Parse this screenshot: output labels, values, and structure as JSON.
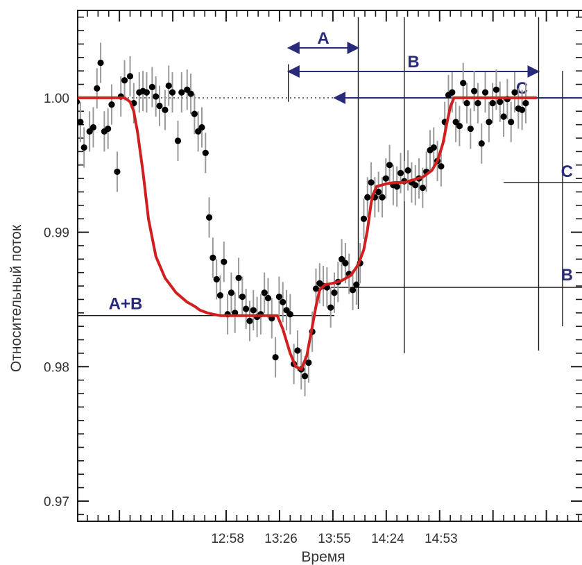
{
  "chart_data": {
    "type": "scatter",
    "xlabel": "Время",
    "ylabel": "Относительный поток",
    "x_ticks": [
      "12:58",
      "13:26",
      "13:55",
      "14:24",
      "14:53"
    ],
    "y_ticks": [
      "0.97",
      "0.98",
      "0.99",
      "1.00"
    ],
    "ylim": [
      0.9685,
      1.0065
    ],
    "grid": false,
    "colors": {
      "data": "#000000",
      "errorbar": "#9a9a9a",
      "model": "#d11f1f",
      "annotation": "#2a2a7a"
    },
    "contact_times_min": [
      -25,
      13,
      38,
      111,
      124,
      143,
      162,
      204
    ],
    "annotations": {
      "arrows": [
        {
          "label": "A",
          "from": -25,
          "to": 13
        },
        {
          "label": "B",
          "from": -25,
          "to": 111
        },
        {
          "label": "C",
          "from": 0,
          "to": 204
        }
      ],
      "levels": [
        {
          "label": "A+B",
          "value": 0.9838
        },
        {
          "label": "B",
          "value": 0.9859
        },
        {
          "label": "C",
          "value": 0.9937
        }
      ]
    },
    "series": [
      {
        "kind": "points",
        "x": [
          2,
          4,
          6,
          9,
          11,
          13,
          15,
          17,
          19,
          21,
          24,
          26,
          28,
          31,
          33,
          36,
          38,
          40,
          43,
          45,
          47,
          50,
          52,
          54,
          57,
          59,
          62,
          64,
          66,
          68,
          70,
          72,
          74,
          76,
          78,
          80,
          82,
          84,
          86,
          88,
          90,
          92,
          94,
          96,
          98,
          100,
          102,
          104,
          106,
          108,
          110,
          112,
          114,
          116,
          118,
          120,
          122,
          124,
          126,
          128,
          130,
          132,
          134,
          136,
          138,
          140,
          142,
          144,
          146,
          148,
          150,
          152,
          154,
          156,
          158,
          160,
          162,
          164,
          166,
          168,
          170,
          172,
          174,
          176,
          178,
          180,
          182,
          184,
          186,
          188,
          190,
          192,
          194,
          196,
          198,
          200,
          202,
          204,
          206,
          208,
          210,
          212,
          214,
          216,
          218,
          220,
          222,
          224,
          226,
          228,
          230,
          232,
          234,
          236,
          238,
          240,
          242,
          244,
          246
        ],
        "y": [
          0.9997,
          0.9982,
          0.9963,
          0.9975,
          0.9978,
          1.0007,
          1.0026,
          0.9975,
          0.9977,
          0.9995,
          0.9945,
          1.0001,
          1.0013,
          1.0016,
          0.9996,
          1.0004,
          1.0005,
          1.0004,
          1.0008,
          1.0001,
          0.9994,
          0.9991,
          1.0009,
          1.0004,
          0.9968,
          1.0004,
          1.0006,
          1.0003,
          0.9988,
          0.9975,
          0.9978,
          0.9959,
          0.9911,
          0.9881,
          0.9865,
          0.9853,
          0.9878,
          0.9839,
          0.9855,
          0.984,
          0.9866,
          0.9852,
          0.9843,
          0.9834,
          0.9842,
          0.9837,
          0.9839,
          0.9855,
          0.9851,
          0.9836,
          0.9807,
          0.9852,
          0.9848,
          0.9842,
          0.9839,
          0.9802,
          0.9812,
          0.9798,
          0.9793,
          0.9803,
          0.9826,
          0.9858,
          0.9862,
          0.986,
          0.9859,
          0.9844,
          0.9855,
          0.9863,
          0.988,
          0.9877,
          0.9869,
          0.9857,
          0.9861,
          0.9877,
          0.991,
          0.9926,
          0.9937,
          0.9926,
          0.993,
          0.9926,
          0.994,
          0.995,
          0.9935,
          0.9934,
          0.9944,
          0.9938,
          0.9946,
          0.9937,
          0.9935,
          0.994,
          0.9933,
          0.9945,
          0.9961,
          0.9963,
          0.9953,
          0.9949,
          0.9982,
          1.0002,
          1.0004,
          0.9982,
          0.9979,
          1.0011,
          0.9996,
          0.9977,
          1.0005,
          0.9996,
          0.9966,
          1.0004,
          0.9982,
          0.9996,
          1.0006,
          0.9997,
          0.9986,
          0.9999,
          0.9982,
          1.0004,
          0.9992,
          0.9991,
          0.9996
        ],
        "err": 0.0015
      },
      {
        "kind": "model",
        "x": [
          -28,
          -20,
          -10,
          0,
          10,
          20,
          28,
          31,
          33,
          35,
          38,
          41,
          45,
          50,
          56,
          62,
          66,
          69,
          73,
          76,
          80,
          84,
          88,
          93,
          98,
          103,
          108,
          111,
          114,
          118,
          121,
          124,
          127,
          130,
          132,
          134,
          137,
          141,
          146,
          151,
          155,
          158,
          160,
          162,
          163,
          165,
          170,
          175,
          180,
          185,
          190,
          195,
          198,
          201,
          203,
          205,
          207,
          210,
          220,
          235,
          252
        ],
        "y": [
          1.0,
          1.0,
          1.0,
          1.0,
          1.0,
          1.0,
          1.0,
          0.9997,
          0.999,
          0.9975,
          0.9945,
          0.991,
          0.9882,
          0.9866,
          0.9855,
          0.9848,
          0.9845,
          0.9842,
          0.984,
          0.9839,
          0.9838,
          0.9838,
          0.9838,
          0.9838,
          0.9838,
          0.9838,
          0.9838,
          0.9838,
          0.9828,
          0.981,
          0.98,
          0.9798,
          0.9808,
          0.983,
          0.9845,
          0.9857,
          0.9861,
          0.9862,
          0.9864,
          0.9868,
          0.9876,
          0.9887,
          0.9902,
          0.9922,
          0.9928,
          0.9934,
          0.9936,
          0.9937,
          0.9937,
          0.9939,
          0.9941,
          0.9946,
          0.9953,
          0.9966,
          0.998,
          0.9993,
          1.0,
          1.0,
          1.0,
          1.0,
          1.0
        ]
      }
    ]
  }
}
